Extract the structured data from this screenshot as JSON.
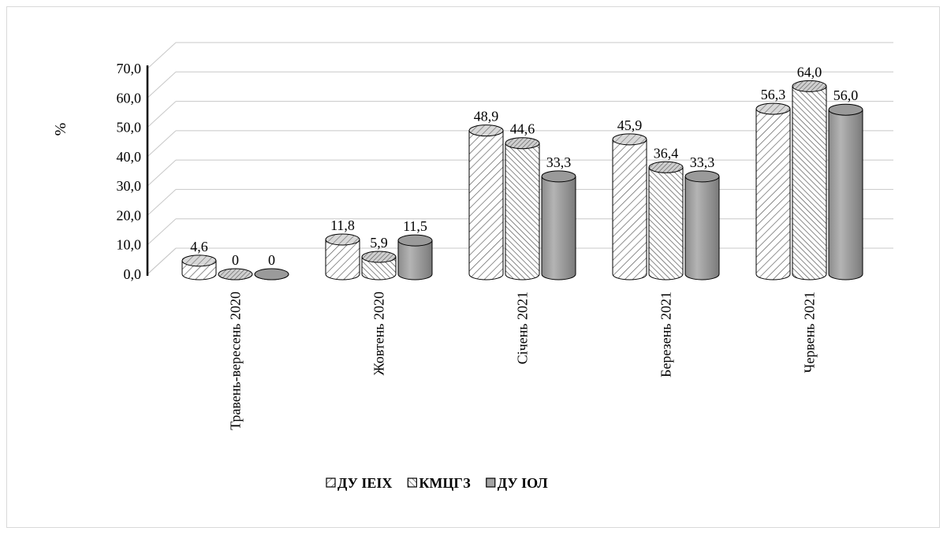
{
  "chart_data": {
    "type": "bar",
    "title": "",
    "xlabel": "",
    "ylabel": "%",
    "ylim": [
      0,
      70
    ],
    "yticks": [
      "0,0",
      "10,0",
      "20,0",
      "30,0",
      "40,0",
      "50,0",
      "60,0",
      "70,0"
    ],
    "categories": [
      "Травень-вересень 2020",
      "Жовтень 2020",
      "Січень 2021",
      "Березень 2021",
      "Червень 2021"
    ],
    "series": [
      {
        "name": "ДУ ІЕІХ",
        "values": [
          4.6,
          11.8,
          48.9,
          45.9,
          56.3
        ],
        "labels": [
          "4,6",
          "11,8",
          "48,9",
          "45,9",
          "56,3"
        ],
        "pattern": "diag-light"
      },
      {
        "name": "КМЦГЗ",
        "values": [
          0,
          5.9,
          44.6,
          36.4,
          64.0
        ],
        "labels": [
          "0",
          "5,9",
          "44,6",
          "36,4",
          "64,0"
        ],
        "pattern": "diag-dense"
      },
      {
        "name": "ДУ ІОЛ",
        "values": [
          0,
          11.5,
          33.3,
          33.3,
          56.0
        ],
        "labels": [
          "0",
          "11,5",
          "33,3",
          "33,3",
          "56,0"
        ],
        "pattern": "solid-gray"
      }
    ],
    "grid": true,
    "legend_position": "bottom",
    "style": "3d-cylinder"
  }
}
